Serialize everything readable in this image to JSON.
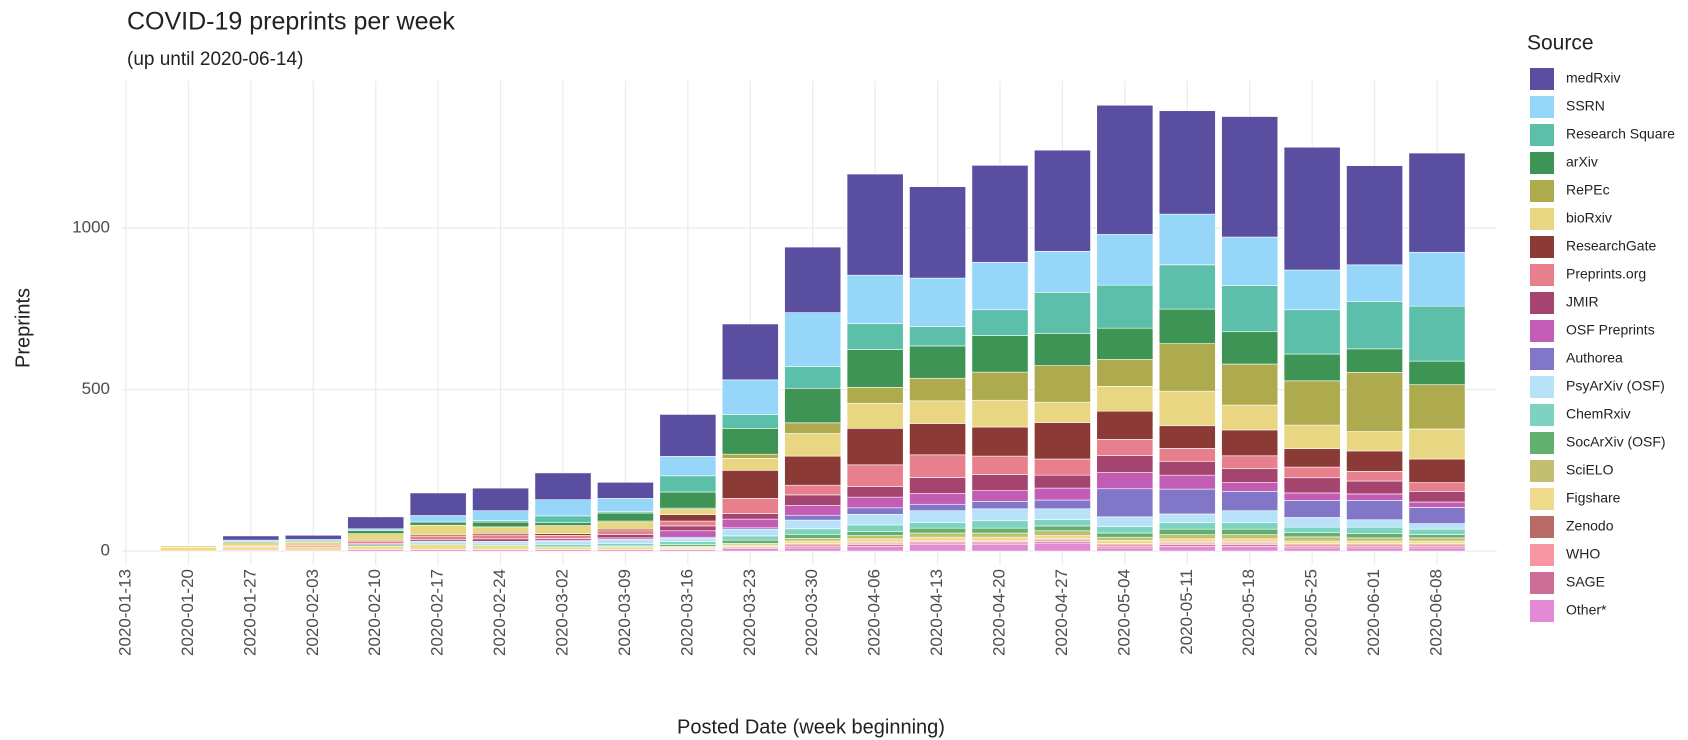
{
  "chart_data": {
    "type": "stacked_bar",
    "title": "COVID-19 preprints per week",
    "subtitle": "(up until 2020-06-14)",
    "x_label": "Posted Date (week beginning)",
    "y_label": "Preprints",
    "legend_title": "Source",
    "legend_position": "right",
    "grid": true,
    "categories": [
      "2020-01-13",
      "2020-01-20",
      "2020-01-27",
      "2020-02-03",
      "2020-02-10",
      "2020-02-17",
      "2020-02-24",
      "2020-03-02",
      "2020-03-09",
      "2020-03-16",
      "2020-03-23",
      "2020-03-30",
      "2020-04-06",
      "2020-04-13",
      "2020-04-20",
      "2020-04-27",
      "2020-05-04",
      "2020-05-11",
      "2020-05-18",
      "2020-05-25",
      "2020-06-01",
      "2020-06-08"
    ],
    "ylim": [
      -43,
      1455
    ],
    "yticks": [
      0,
      500,
      1000
    ],
    "series": [
      {
        "name": "medRxiv",
        "color": "#5a4ea0",
        "values": [
          0,
          0,
          13,
          13,
          37,
          70,
          70,
          83,
          50,
          130,
          173,
          203,
          313,
          283,
          300,
          313,
          400,
          320,
          373,
          380,
          307,
          307
        ]
      },
      {
        "name": "SSRN",
        "color": "#96d6f8",
        "values": [
          0,
          0,
          5,
          5,
          5,
          20,
          30,
          50,
          40,
          60,
          107,
          167,
          150,
          150,
          147,
          127,
          157,
          157,
          150,
          123,
          113,
          167
        ]
      },
      {
        "name": "Research Square",
        "color": "#5cbfaa",
        "values": [
          0,
          0,
          0,
          0,
          0,
          0,
          5,
          20,
          5,
          50,
          43,
          67,
          80,
          60,
          80,
          127,
          133,
          137,
          143,
          137,
          147,
          170
        ]
      },
      {
        "name": "arXiv",
        "color": "#3d9454",
        "values": [
          0,
          0,
          3,
          3,
          10,
          10,
          15,
          10,
          25,
          50,
          80,
          107,
          117,
          100,
          113,
          100,
          97,
          107,
          100,
          83,
          73,
          73
        ]
      },
      {
        "name": "RePEc",
        "color": "#aeab4f",
        "values": [
          0,
          0,
          0,
          0,
          0,
          0,
          0,
          0,
          5,
          5,
          13,
          33,
          50,
          70,
          87,
          113,
          83,
          147,
          127,
          137,
          183,
          137
        ]
      },
      {
        "name": "bioRxiv",
        "color": "#e8d683",
        "values": [
          0,
          5,
          10,
          10,
          20,
          30,
          20,
          25,
          20,
          15,
          37,
          70,
          77,
          70,
          83,
          63,
          77,
          107,
          77,
          73,
          60,
          93
        ]
      },
      {
        "name": "ResearchGate",
        "color": "#8b3a36",
        "values": [
          0,
          0,
          0,
          0,
          3,
          5,
          5,
          5,
          5,
          20,
          87,
          90,
          113,
          97,
          90,
          113,
          87,
          70,
          80,
          57,
          63,
          73
        ]
      },
      {
        "name": "Preprints.org",
        "color": "#e87f8c",
        "values": [
          0,
          0,
          3,
          5,
          8,
          10,
          12,
          10,
          12,
          15,
          47,
          30,
          67,
          70,
          57,
          50,
          50,
          40,
          40,
          33,
          30,
          27
        ]
      },
      {
        "name": "JMIR",
        "color": "#a5456f",
        "values": [
          0,
          0,
          0,
          0,
          3,
          5,
          8,
          5,
          10,
          15,
          17,
          33,
          33,
          50,
          50,
          40,
          53,
          43,
          43,
          47,
          40,
          33
        ]
      },
      {
        "name": "OSF Preprints",
        "color": "#c35cb4",
        "values": [
          0,
          0,
          0,
          0,
          0,
          0,
          0,
          3,
          5,
          20,
          27,
          30,
          33,
          33,
          33,
          37,
          50,
          43,
          27,
          23,
          20,
          17
        ]
      },
      {
        "name": "Authorea",
        "color": "#8276c8",
        "values": [
          0,
          0,
          0,
          0,
          0,
          0,
          0,
          0,
          0,
          3,
          5,
          15,
          20,
          20,
          23,
          27,
          87,
          77,
          60,
          53,
          60,
          50
        ]
      },
      {
        "name": "PsyArXiv (OSF)",
        "color": "#b8e2f8",
        "values": [
          0,
          0,
          0,
          0,
          0,
          5,
          8,
          10,
          12,
          10,
          20,
          27,
          33,
          37,
          37,
          33,
          30,
          27,
          37,
          30,
          23,
          17
        ]
      },
      {
        "name": "ChemRxiv",
        "color": "#7dd3c0",
        "values": [
          0,
          0,
          0,
          0,
          5,
          5,
          5,
          8,
          8,
          10,
          13,
          17,
          20,
          17,
          23,
          20,
          20,
          20,
          20,
          17,
          20,
          17
        ]
      },
      {
        "name": "SocArXiv (OSF)",
        "color": "#62b06f",
        "values": [
          0,
          0,
          0,
          0,
          0,
          0,
          0,
          0,
          3,
          5,
          10,
          13,
          13,
          15,
          15,
          15,
          13,
          17,
          17,
          13,
          13,
          10
        ]
      },
      {
        "name": "SciELO",
        "color": "#c2c070",
        "values": [
          0,
          0,
          0,
          0,
          0,
          0,
          0,
          0,
          0,
          3,
          5,
          8,
          10,
          13,
          13,
          15,
          10,
          13,
          13,
          13,
          10,
          10
        ]
      },
      {
        "name": "Figshare",
        "color": "#f0db8c",
        "values": [
          0,
          12,
          10,
          10,
          10,
          15,
          12,
          8,
          8,
          5,
          5,
          8,
          10,
          10,
          10,
          10,
          10,
          10,
          10,
          8,
          8,
          8
        ]
      },
      {
        "name": "Zenodo",
        "color": "#b86a64",
        "values": [
          0,
          0,
          0,
          0,
          0,
          0,
          0,
          0,
          0,
          2,
          3,
          3,
          3,
          3,
          3,
          3,
          3,
          3,
          3,
          3,
          3,
          3
        ]
      },
      {
        "name": "WHO",
        "color": "#f795a2",
        "values": [
          0,
          0,
          0,
          0,
          0,
          0,
          0,
          0,
          0,
          0,
          0,
          5,
          5,
          5,
          5,
          5,
          5,
          5,
          5,
          5,
          5,
          5
        ]
      },
      {
        "name": "SAGE",
        "color": "#cc6e96",
        "values": [
          0,
          0,
          0,
          0,
          0,
          0,
          0,
          0,
          0,
          0,
          3,
          5,
          5,
          5,
          5,
          5,
          5,
          5,
          5,
          5,
          5,
          5
        ]
      },
      {
        "name": "Other*",
        "color": "#e28ad4",
        "values": [
          0,
          0,
          3,
          3,
          5,
          5,
          5,
          5,
          5,
          5,
          8,
          10,
          15,
          20,
          20,
          25,
          10,
          15,
          15,
          10,
          10,
          10
        ]
      }
    ]
  }
}
